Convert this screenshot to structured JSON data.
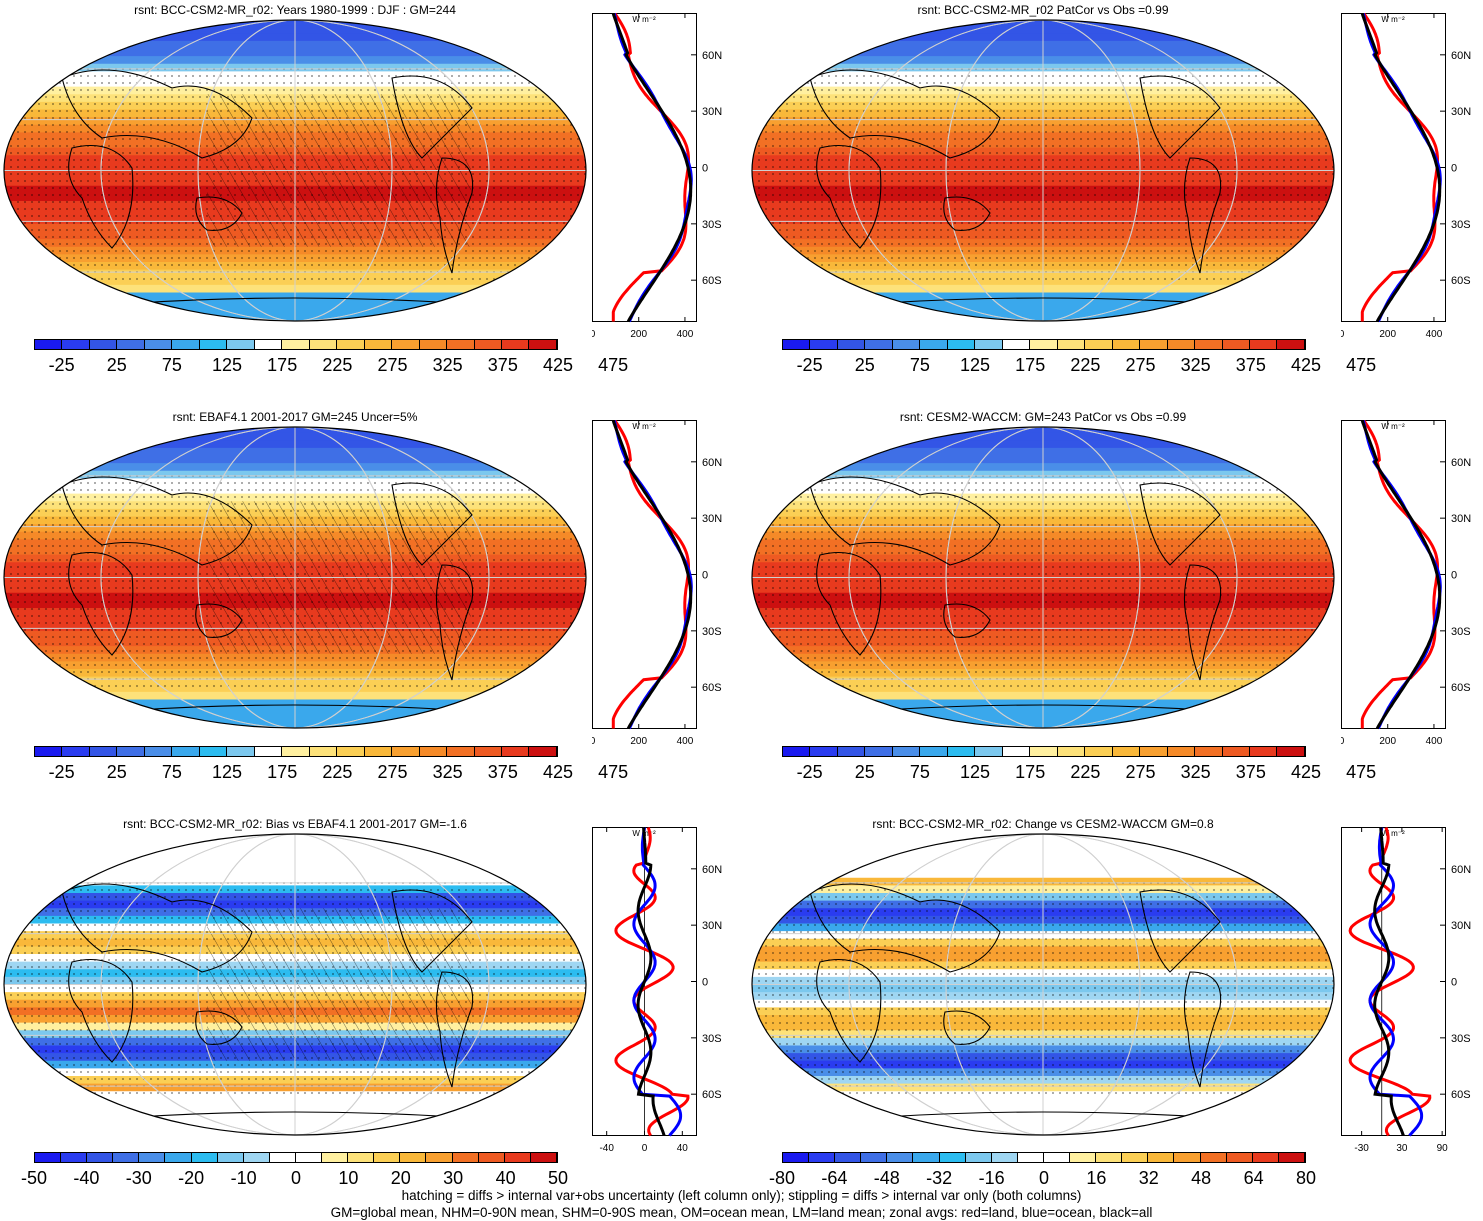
{
  "panels": [
    {
      "title": "rsnt: BCC-CSM2-MR_r02: Years 1980-1999 : DJF : GM=244",
      "colorbar": [
        "-25",
        "25",
        "75",
        "125",
        "175",
        "225",
        "275",
        "325",
        "375",
        "425",
        "475"
      ],
      "zonal_xticks": [
        "0",
        "200",
        "400"
      ],
      "zonal_range": [
        0,
        450
      ]
    },
    {
      "title": "rsnt: BCC-CSM2-MR_r02 PatCor vs Obs =0.99",
      "colorbar": [
        "-25",
        "25",
        "75",
        "125",
        "175",
        "225",
        "275",
        "325",
        "375",
        "425",
        "475"
      ],
      "zonal_xticks": [
        "0",
        "200",
        "400"
      ],
      "zonal_range": [
        0,
        450
      ]
    },
    {
      "title": "rsnt: EBAF4.1 2001-2017 GM=245 Uncer=5%",
      "colorbar": [
        "-25",
        "25",
        "75",
        "125",
        "175",
        "225",
        "275",
        "325",
        "375",
        "425",
        "475"
      ],
      "zonal_xticks": [
        "0",
        "200",
        "400"
      ],
      "zonal_range": [
        0,
        450
      ]
    },
    {
      "title": "rsnt: CESM2-WACCM: GM=243 PatCor vs Obs =0.99",
      "colorbar": [
        "-25",
        "25",
        "75",
        "125",
        "175",
        "225",
        "275",
        "325",
        "375",
        "425",
        "475"
      ],
      "zonal_xticks": [
        "0",
        "200",
        "400"
      ],
      "zonal_range": [
        0,
        450
      ]
    },
    {
      "title": "rsnt: BCC-CSM2-MR_r02: Bias vs EBAF4.1 2001-2017 GM=-1.6",
      "colorbar": [
        "-50",
        "-40",
        "-30",
        "-20",
        "-10",
        "0",
        "10",
        "20",
        "30",
        "40",
        "50"
      ],
      "zonal_xticks": [
        "-40",
        "0",
        "40"
      ],
      "zonal_range": [
        -55,
        55
      ]
    },
    {
      "title": "rsnt: BCC-CSM2-MR_r02: Change vs CESM2-WACCM GM=0.8",
      "colorbar": [
        "-80",
        "-64",
        "-48",
        "-32",
        "-16",
        "0",
        "16",
        "32",
        "48",
        "64",
        "80"
      ],
      "zonal_xticks": [
        "-30",
        "30",
        "90"
      ],
      "zonal_range": [
        -60,
        95
      ]
    }
  ],
  "zonal_units": "W m⁻²",
  "lat_labels": [
    "60N",
    "30N",
    "0",
    "30S",
    "60S"
  ],
  "footnote": {
    "line1": "hatching = diffs > internal var+obs uncertainty (left column only); stippling = diffs > internal var only (both columns)",
    "line2": "GM=global mean, NHM=0-90N mean, SHM=0-90S mean, OM=ocean mean, LM=land mean; zonal avgs: red=land, blue=ocean, black=all"
  },
  "colors": {
    "abs_palette": [
      "#1a1af0",
      "#2a3cf0",
      "#3355e6",
      "#3f6fe6",
      "#4a8ee8",
      "#3aa8ec",
      "#2cbcf0",
      "#7cc8ee",
      "#ffffff",
      "#fff0a0",
      "#fde27a",
      "#fbcf55",
      "#f9b83a",
      "#f8a030",
      "#f58a28",
      "#f27024",
      "#ee5a22",
      "#e83a1e",
      "#cc1010"
    ],
    "diff_palette": [
      "#1a1af0",
      "#2a3cf0",
      "#3355e6",
      "#3f6fe6",
      "#4a8ee8",
      "#3aa8ec",
      "#2cbcf0",
      "#7cc8ee",
      "#9fd6f2",
      "#ffffff",
      "#ffffff",
      "#fff0a0",
      "#fde27a",
      "#fbcf55",
      "#f9b83a",
      "#f8a030",
      "#f27024",
      "#ee5a22",
      "#e83a1e",
      "#cc1010"
    ],
    "land_line": "#ff0000",
    "ocean_line": "#0000ff",
    "all_line": "#000000"
  }
}
